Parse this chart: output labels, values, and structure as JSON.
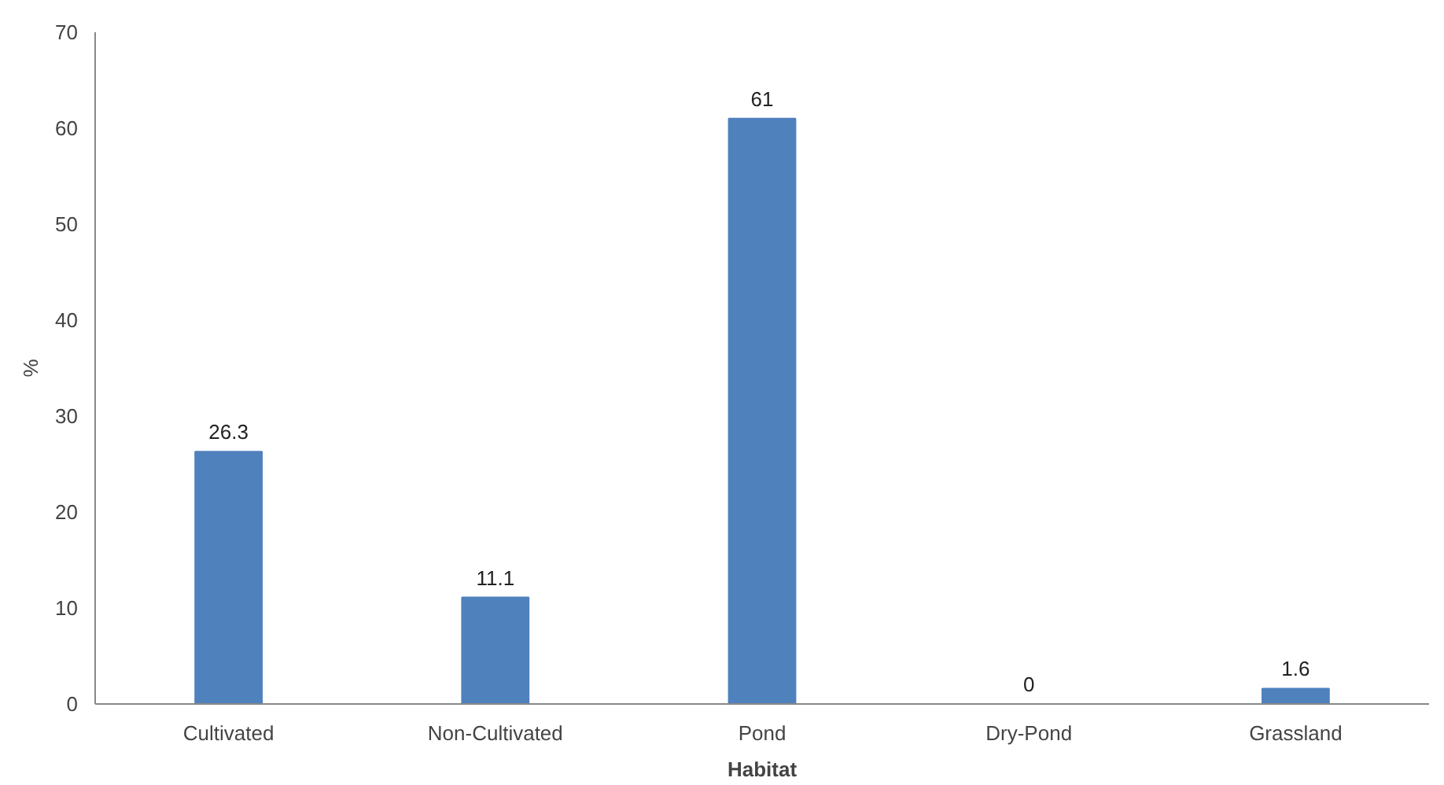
{
  "chart_data": {
    "type": "bar",
    "xlabel": "Habitat",
    "ylabel": "%",
    "categories": [
      "Cultivated",
      "Non-Cultivated",
      "Pond",
      "Dry-Pond",
      "Grassland"
    ],
    "values": [
      26.3,
      11.1,
      61,
      0,
      1.6
    ],
    "color": "#4f81bd",
    "ylim": [
      0,
      70
    ],
    "yticks": [
      0,
      10,
      20,
      30,
      40,
      50,
      60,
      70
    ],
    "grid": false,
    "data_labels": true
  }
}
